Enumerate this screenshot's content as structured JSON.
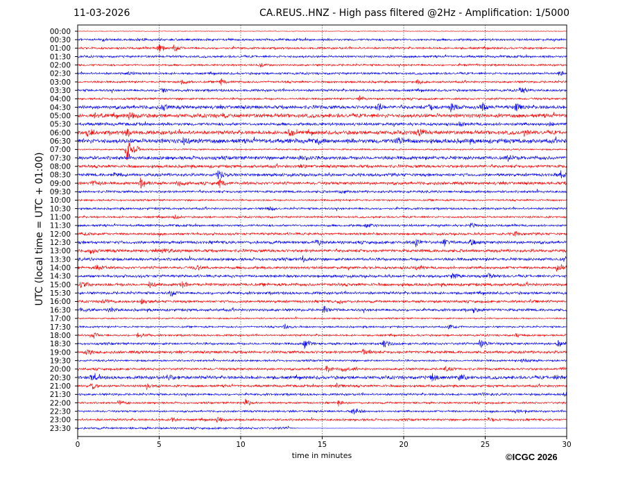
{
  "header": {
    "date": "11-03-2026",
    "title": "CA.REUS..HNZ - High pass filtered @2Hz - Amplification: 1/5000"
  },
  "footer": {
    "copyright": "©ICGC 2026"
  },
  "chart_data": {
    "type": "line",
    "subtype": "helicorder",
    "xlabel": "time in minutes",
    "ylabel": "UTC (local time = UTC + 01:00)",
    "xlim": [
      0,
      30
    ],
    "xticks": [
      "0",
      "5",
      "10",
      "15",
      "20",
      "25",
      "30"
    ],
    "grid": "vertical dotted at 5-minute intervals",
    "row_labels": [
      "00:00",
      "00:30",
      "01:00",
      "01:30",
      "02:00",
      "02:30",
      "03:00",
      "03:30",
      "04:00",
      "04:30",
      "05:00",
      "05:30",
      "06:00",
      "06:30",
      "07:00",
      "07:30",
      "08:00",
      "08:30",
      "09:00",
      "09:30",
      "10:00",
      "10:30",
      "11:00",
      "11:30",
      "12:00",
      "12:30",
      "13:00",
      "13:30",
      "14:00",
      "14:30",
      "15:00",
      "15:30",
      "16:00",
      "16:30",
      "17:00",
      "17:30",
      "18:00",
      "18:30",
      "19:00",
      "19:30",
      "20:00",
      "20:30",
      "21:00",
      "21:30",
      "22:00",
      "22:30",
      "23:00",
      "23:30"
    ],
    "colors": [
      "#ff0000",
      "#0000ff"
    ],
    "noise_level": [
      0.4,
      1.5,
      1.4,
      1.5,
      1.3,
      1.5,
      1.4,
      1.6,
      1.4,
      2.4,
      2.6,
      2,
      2.6,
      3,
      1,
      2.4,
      2,
      2,
      2,
      1.6,
      1.2,
      1.4,
      1.3,
      1.5,
      1.6,
      2,
      2,
      2,
      1.8,
      1.8,
      2,
      1.8,
      1.7,
      1.8,
      1,
      1.2,
      1.3,
      1.6,
      1.8,
      1.3,
      1.6,
      2.2,
      1.6,
      1.5,
      1.3,
      1.3,
      1.5,
      1.4
    ],
    "last_row_data_end_minute": 12.9,
    "events": [
      {
        "row": 2,
        "minute": 5.0,
        "amp": 9
      },
      {
        "row": 2,
        "minute": 5.9,
        "amp": 5
      },
      {
        "row": 1,
        "minute": 1.5,
        "amp": 3
      },
      {
        "row": 1,
        "minute": 3.7,
        "amp": 3
      },
      {
        "row": 4,
        "minute": 11.2,
        "amp": 3
      },
      {
        "row": 4,
        "minute": 23.8,
        "amp": 3
      },
      {
        "row": 5,
        "minute": 3.1,
        "amp": 3
      },
      {
        "row": 5,
        "minute": 29.6,
        "amp": 4
      },
      {
        "row": 6,
        "minute": 6.4,
        "amp": 5
      },
      {
        "row": 6,
        "minute": 8.8,
        "amp": 5
      },
      {
        "row": 6,
        "minute": 20.8,
        "amp": 4
      },
      {
        "row": 7,
        "minute": 5.2,
        "amp": 4
      },
      {
        "row": 7,
        "minute": 27.2,
        "amp": 5
      },
      {
        "row": 8,
        "minute": 17.3,
        "amp": 4
      },
      {
        "row": 9,
        "minute": 5.2,
        "amp": 7
      },
      {
        "row": 9,
        "minute": 18.4,
        "amp": 7
      },
      {
        "row": 9,
        "minute": 21.5,
        "amp": 6
      },
      {
        "row": 9,
        "minute": 22.9,
        "amp": 7
      },
      {
        "row": 9,
        "minute": 24.8,
        "amp": 6
      },
      {
        "row": 9,
        "minute": 26.9,
        "amp": 8
      },
      {
        "row": 10,
        "minute": 1.0,
        "amp": 5
      },
      {
        "row": 10,
        "minute": 3.2,
        "amp": 7
      },
      {
        "row": 10,
        "minute": 9.0,
        "amp": 4
      },
      {
        "row": 11,
        "minute": 23.4,
        "amp": 5
      },
      {
        "row": 11,
        "minute": 29.0,
        "amp": 4
      },
      {
        "row": 12,
        "minute": 0.6,
        "amp": 6
      },
      {
        "row": 12,
        "minute": 3.0,
        "amp": 6
      },
      {
        "row": 12,
        "minute": 13.0,
        "amp": 5
      },
      {
        "row": 12,
        "minute": 21.0,
        "amp": 7
      },
      {
        "row": 12,
        "minute": 27.4,
        "amp": 6
      },
      {
        "row": 13,
        "minute": 6.5,
        "amp": 5
      },
      {
        "row": 13,
        "minute": 14.8,
        "amp": 5
      },
      {
        "row": 13,
        "minute": 19.6,
        "amp": 5
      },
      {
        "row": 14,
        "minute": 3.0,
        "amp": 25
      },
      {
        "row": 14,
        "minute": 3.6,
        "amp": 4
      },
      {
        "row": 15,
        "minute": 13.7,
        "amp": 5
      },
      {
        "row": 15,
        "minute": 26.4,
        "amp": 4
      },
      {
        "row": 16,
        "minute": 13.6,
        "amp": 4
      },
      {
        "row": 17,
        "minute": 2.2,
        "amp": 4
      },
      {
        "row": 17,
        "minute": 8.6,
        "amp": 8
      },
      {
        "row": 17,
        "minute": 29.6,
        "amp": 6
      },
      {
        "row": 18,
        "minute": 0.9,
        "amp": 5
      },
      {
        "row": 18,
        "minute": 3.9,
        "amp": 11
      },
      {
        "row": 18,
        "minute": 6.2,
        "amp": 5
      },
      {
        "row": 18,
        "minute": 8.7,
        "amp": 7
      },
      {
        "row": 19,
        "minute": 16.1,
        "amp": 3
      },
      {
        "row": 21,
        "minute": 11.7,
        "amp": 5
      },
      {
        "row": 22,
        "minute": 6.0,
        "amp": 4
      },
      {
        "row": 23,
        "minute": 17.7,
        "amp": 5
      },
      {
        "row": 23,
        "minute": 24.1,
        "amp": 5
      },
      {
        "row": 24,
        "minute": 0.5,
        "amp": 4
      },
      {
        "row": 24,
        "minute": 26.8,
        "amp": 4
      },
      {
        "row": 25,
        "minute": 14.7,
        "amp": 5
      },
      {
        "row": 25,
        "minute": 20.7,
        "amp": 7
      },
      {
        "row": 25,
        "minute": 22.5,
        "amp": 6
      },
      {
        "row": 25,
        "minute": 24.1,
        "amp": 5
      },
      {
        "row": 26,
        "minute": 0.8,
        "amp": 5
      },
      {
        "row": 26,
        "minute": 5.2,
        "amp": 4
      },
      {
        "row": 27,
        "minute": 13.8,
        "amp": 4
      },
      {
        "row": 27,
        "minute": 29.9,
        "amp": 4
      },
      {
        "row": 28,
        "minute": 1.2,
        "amp": 5
      },
      {
        "row": 28,
        "minute": 7.3,
        "amp": 5
      },
      {
        "row": 28,
        "minute": 20.8,
        "amp": 5
      },
      {
        "row": 28,
        "minute": 29.4,
        "amp": 5
      },
      {
        "row": 29,
        "minute": 23.0,
        "amp": 6
      },
      {
        "row": 29,
        "minute": 25.2,
        "amp": 4
      },
      {
        "row": 30,
        "minute": 0.2,
        "amp": 5
      },
      {
        "row": 30,
        "minute": 4.4,
        "amp": 5
      },
      {
        "row": 30,
        "minute": 6.4,
        "amp": 5
      },
      {
        "row": 31,
        "minute": 5.7,
        "amp": 4
      },
      {
        "row": 32,
        "minute": 1.6,
        "amp": 5
      },
      {
        "row": 32,
        "minute": 3.9,
        "amp": 5
      },
      {
        "row": 32,
        "minute": 16.0,
        "amp": 4
      },
      {
        "row": 32,
        "minute": 27.8,
        "amp": 4
      },
      {
        "row": 33,
        "minute": 0.2,
        "amp": 4
      },
      {
        "row": 33,
        "minute": 1.9,
        "amp": 5
      },
      {
        "row": 33,
        "minute": 15.1,
        "amp": 6
      },
      {
        "row": 33,
        "minute": 24.3,
        "amp": 6
      },
      {
        "row": 35,
        "minute": 12.7,
        "amp": 6
      },
      {
        "row": 35,
        "minute": 22.8,
        "amp": 5
      },
      {
        "row": 36,
        "minute": 1.0,
        "amp": 5
      },
      {
        "row": 36,
        "minute": 3.7,
        "amp": 6
      },
      {
        "row": 36,
        "minute": 26.9,
        "amp": 4
      },
      {
        "row": 37,
        "minute": 13.9,
        "amp": 9
      },
      {
        "row": 37,
        "minute": 18.8,
        "amp": 6
      },
      {
        "row": 37,
        "minute": 24.7,
        "amp": 7
      },
      {
        "row": 37,
        "minute": 29.5,
        "amp": 7
      },
      {
        "row": 38,
        "minute": 0.6,
        "amp": 5
      },
      {
        "row": 38,
        "minute": 17.5,
        "amp": 5
      },
      {
        "row": 39,
        "minute": 27.3,
        "amp": 4
      },
      {
        "row": 40,
        "minute": 15.3,
        "amp": 7
      },
      {
        "row": 40,
        "minute": 16.3,
        "amp": 5
      },
      {
        "row": 40,
        "minute": 22.6,
        "amp": 5
      },
      {
        "row": 40,
        "minute": 29.7,
        "amp": 5
      },
      {
        "row": 41,
        "minute": 0.8,
        "amp": 5
      },
      {
        "row": 41,
        "minute": 5.7,
        "amp": 6
      },
      {
        "row": 41,
        "minute": 21.7,
        "amp": 7
      },
      {
        "row": 41,
        "minute": 23.4,
        "amp": 6
      },
      {
        "row": 41,
        "minute": 29.3,
        "amp": 5
      },
      {
        "row": 42,
        "minute": 0.9,
        "amp": 6
      },
      {
        "row": 42,
        "minute": 4.2,
        "amp": 5
      },
      {
        "row": 42,
        "minute": 15.9,
        "amp": 6
      },
      {
        "row": 43,
        "minute": 24.6,
        "amp": 4
      },
      {
        "row": 43,
        "minute": 29.9,
        "amp": 5
      },
      {
        "row": 44,
        "minute": 2.5,
        "amp": 5
      },
      {
        "row": 44,
        "minute": 10.3,
        "amp": 7
      },
      {
        "row": 44,
        "minute": 16.0,
        "amp": 4
      },
      {
        "row": 45,
        "minute": 16.9,
        "amp": 8
      },
      {
        "row": 45,
        "minute": 26.9,
        "amp": 5
      },
      {
        "row": 46,
        "minute": 5.8,
        "amp": 6
      },
      {
        "row": 46,
        "minute": 8.6,
        "amp": 6
      },
      {
        "row": 46,
        "minute": 25.2,
        "amp": 4
      },
      {
        "row": 47,
        "minute": 12.8,
        "amp": 5
      }
    ]
  }
}
